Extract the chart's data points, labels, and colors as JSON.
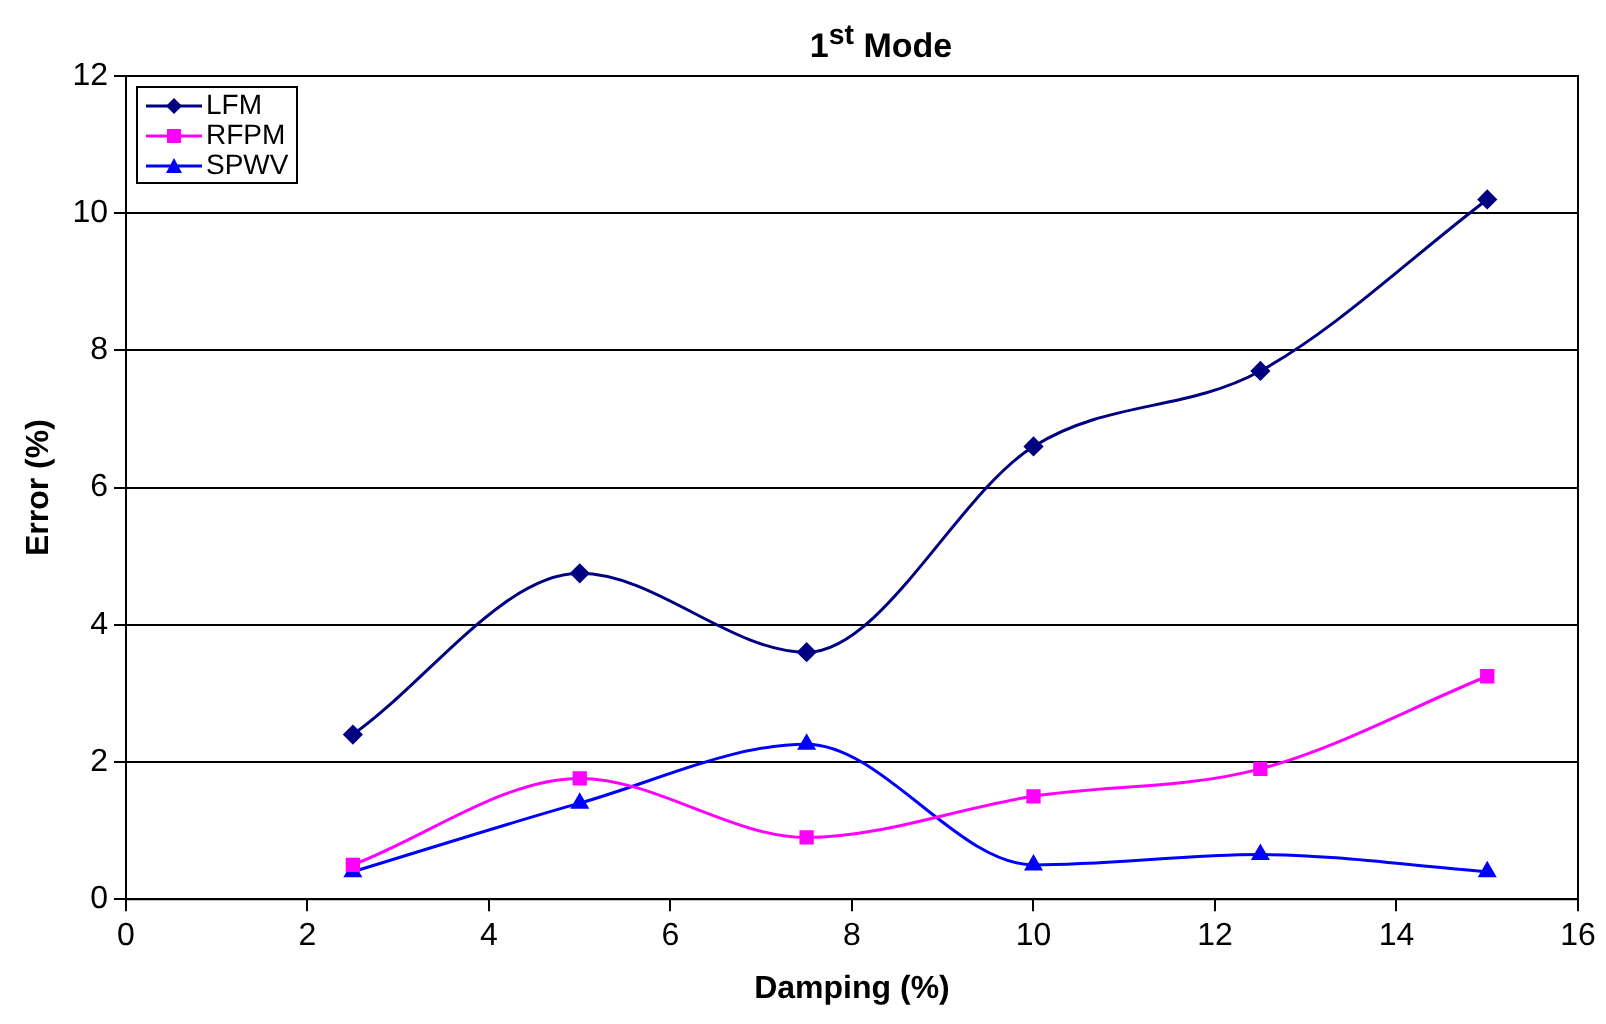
{
  "chart_data": {
    "type": "line",
    "title": "1$^{st}$ Mode",
    "xlabel": "Damping (%)",
    "ylabel": "Error (%)",
    "x": [
      2.5,
      5,
      7.5,
      10,
      12.5,
      15
    ],
    "series": [
      {
        "name": "LFM",
        "color": "#000080",
        "marker": "diamond",
        "values": [
          2.4,
          4.75,
          3.6,
          6.6,
          7.7,
          10.2
        ]
      },
      {
        "name": "RFPM",
        "color": "#ff00ff",
        "marker": "square",
        "values": [
          0.5,
          1.76,
          0.9,
          1.5,
          1.9,
          3.25
        ]
      },
      {
        "name": "SPWV",
        "color": "#0000ff",
        "marker": "triangle",
        "values": [
          0.4,
          1.4,
          2.26,
          0.5,
          0.65,
          0.4
        ]
      }
    ],
    "xlim": [
      0,
      16
    ],
    "xticks": [
      0,
      2,
      4,
      6,
      8,
      10,
      12,
      14,
      16
    ],
    "ylim": [
      0,
      12
    ],
    "yticks": [
      0,
      2,
      4,
      6,
      8,
      10,
      12
    ],
    "grid": "y",
    "legend": "top left",
    "line_style": "solid"
  }
}
